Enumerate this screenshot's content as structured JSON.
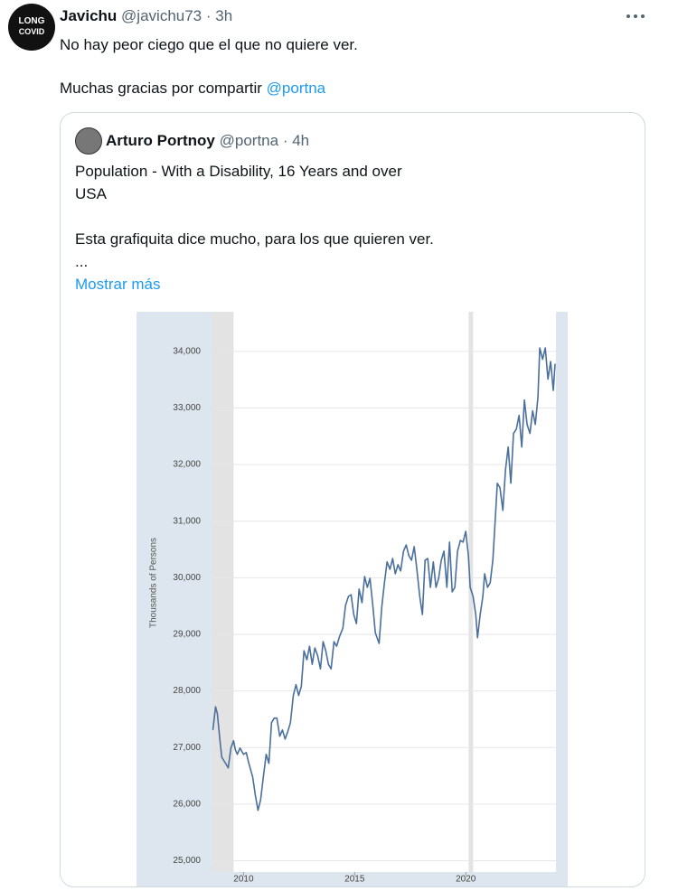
{
  "tweet": {
    "avatar_text": [
      "LONG",
      "COVID"
    ],
    "name": "Javichu",
    "handle": "@javichu73",
    "time": "· 3h",
    "text_line1": "No hay peor ciego que el que no quiere ver.",
    "text_line2": "Muchas gracias por compartir",
    "mention": "@portna"
  },
  "quoted": {
    "name": "Arturo Portnoy",
    "handle": "@portna",
    "time": "· 4h",
    "lines": [
      "Population - With a Disability, 16 Years and over",
      "USA",
      "Esta grafiquita dice mucho, para los que quieren ver.",
      "..."
    ],
    "more": "Mostrar más"
  },
  "chart_data": {
    "type": "line",
    "y_label": "Thousands of Persons",
    "color": "#4a6f9c",
    "recession_shading": [
      [
        2008.6,
        2009.55
      ],
      [
        2020.13,
        2020.33
      ]
    ],
    "x": [
      2008.62,
      2008.74,
      2008.82,
      2008.94,
      2009.02,
      2009.19,
      2009.31,
      2009.43,
      2009.55,
      2009.63,
      2009.72,
      2009.84,
      2010.0,
      2010.12,
      2010.24,
      2010.41,
      2010.53,
      2010.65,
      2010.77,
      2010.89,
      2011.02,
      2011.14,
      2011.26,
      2011.38,
      2011.5,
      2011.63,
      2011.75,
      2011.87,
      2011.99,
      2012.11,
      2012.24,
      2012.36,
      2012.48,
      2012.6,
      2012.72,
      2012.85,
      2012.97,
      2013.09,
      2013.21,
      2013.33,
      2013.46,
      2013.58,
      2013.7,
      2013.82,
      2013.94,
      2014.07,
      2014.19,
      2014.31,
      2014.47,
      2014.59,
      2014.72,
      2014.84,
      2014.96,
      2015.08,
      2015.2,
      2015.33,
      2015.45,
      2015.57,
      2015.69,
      2015.81,
      2015.93,
      2016.1,
      2016.22,
      2016.34,
      2016.46,
      2016.59,
      2016.71,
      2016.83,
      2016.95,
      2017.07,
      2017.2,
      2017.32,
      2017.44,
      2017.56,
      2017.68,
      2017.8,
      2017.93,
      2018.05,
      2018.17,
      2018.29,
      2018.41,
      2018.54,
      2018.66,
      2018.78,
      2018.9,
      2019.02,
      2019.15,
      2019.27,
      2019.39,
      2019.51,
      2019.63,
      2019.76,
      2019.88,
      2020.0,
      2020.12,
      2020.2,
      2020.33,
      2020.45,
      2020.53,
      2020.65,
      2020.77,
      2020.85,
      2020.98,
      2021.1,
      2021.22,
      2021.34,
      2021.42,
      2021.54,
      2021.67,
      2021.79,
      2021.91,
      2022.03,
      2022.15,
      2022.28,
      2022.4,
      2022.52,
      2022.64,
      2022.76,
      2022.89,
      2023.01,
      2023.13,
      2023.25,
      2023.33,
      2023.46,
      2023.58,
      2023.7,
      2023.82,
      2023.94,
      2024.02
    ],
    "values": [
      27310,
      27720,
      27600,
      27120,
      26830,
      26720,
      26640,
      26990,
      27120,
      26960,
      26880,
      26990,
      26880,
      26910,
      26720,
      26480,
      26160,
      25890,
      26080,
      26480,
      26880,
      26720,
      27440,
      27520,
      27520,
      27200,
      27310,
      27150,
      27280,
      27440,
      27920,
      28110,
      27920,
      28080,
      28710,
      28550,
      28790,
      28470,
      28760,
      28630,
      28390,
      28870,
      28710,
      28470,
      28390,
      28870,
      28790,
      28950,
      29110,
      29510,
      29670,
      29700,
      29350,
      29190,
      29800,
      29560,
      30020,
      29830,
      29990,
      29540,
      29030,
      28840,
      29480,
      29910,
      30280,
      30150,
      30340,
      30070,
      30230,
      30120,
      30470,
      30580,
      30390,
      30310,
      30550,
      30150,
      29670,
      29350,
      30310,
      30340,
      29830,
      30280,
      29830,
      29990,
      30310,
      30470,
      29830,
      30630,
      29750,
      29830,
      30470,
      30660,
      30630,
      30820,
      30390,
      29830,
      29670,
      29350,
      28940,
      29350,
      29670,
      30070,
      29830,
      29910,
      30310,
      31110,
      31670,
      31590,
      31190,
      31910,
      32310,
      31670,
      32550,
      32630,
      32870,
      32310,
      33140,
      32710,
      32550,
      32950,
      32710,
      33190,
      34060,
      33860,
      34060,
      33510,
      33820,
      33310,
      33780
    ],
    "xlim": [
      2008.6,
      2024.06
    ],
    "ylim": [
      24800,
      34700
    ],
    "xticks": [
      2010,
      2015,
      2020
    ],
    "yticks": [
      {
        "value": 25000,
        "label": "25,000"
      },
      {
        "value": 26000,
        "label": "26,000"
      },
      {
        "value": 27000,
        "label": "27,000"
      },
      {
        "value": 28000,
        "label": "28,000"
      },
      {
        "value": 29000,
        "label": "29,000"
      },
      {
        "value": 30000,
        "label": "30,000"
      },
      {
        "value": 31000,
        "label": "31,000"
      },
      {
        "value": 32000,
        "label": "32,000"
      },
      {
        "value": 33000,
        "label": "33,000"
      },
      {
        "value": 34000,
        "label": "34,000"
      }
    ],
    "grid": true
  }
}
